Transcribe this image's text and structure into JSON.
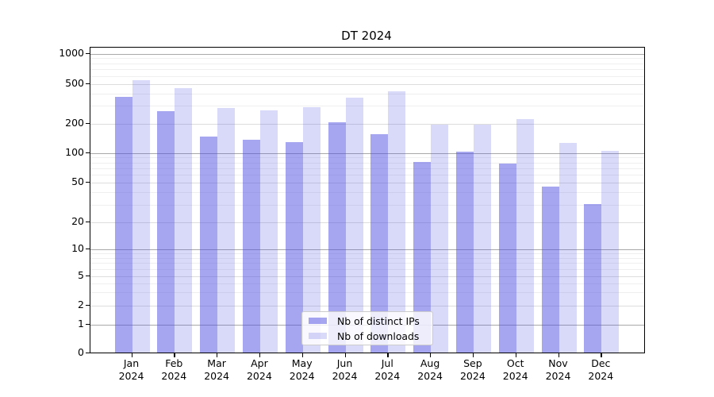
{
  "chart_data": {
    "type": "bar",
    "title": "DT 2024",
    "legend_position": "lower center",
    "grid": true,
    "y_axis": {
      "scale": "log-with-zero",
      "range": [
        0,
        1000
      ],
      "ticks": [
        {
          "value": 1000,
          "label": "1000"
        },
        {
          "value": 500,
          "label": "500"
        },
        {
          "value": 200,
          "label": "200"
        },
        {
          "value": 100,
          "label": "100"
        },
        {
          "value": 50,
          "label": "50"
        },
        {
          "value": 20,
          "label": "20"
        },
        {
          "value": 10,
          "label": "10"
        },
        {
          "value": 5,
          "label": "5"
        },
        {
          "value": 2,
          "label": "2"
        },
        {
          "value": 1,
          "label": "1"
        },
        {
          "value": 0,
          "label": "0"
        }
      ],
      "minor_gridlines": [
        3,
        4,
        6,
        7,
        8,
        9,
        30,
        40,
        60,
        70,
        80,
        90,
        300,
        400,
        600,
        700,
        800,
        900
      ]
    },
    "categories": [
      {
        "month": "Jan",
        "year": "2024"
      },
      {
        "month": "Feb",
        "year": "2024"
      },
      {
        "month": "Mar",
        "year": "2024"
      },
      {
        "month": "Apr",
        "year": "2024"
      },
      {
        "month": "May",
        "year": "2024"
      },
      {
        "month": "Jun",
        "year": "2024"
      },
      {
        "month": "Jul",
        "year": "2024"
      },
      {
        "month": "Aug",
        "year": "2024"
      },
      {
        "month": "Sep",
        "year": "2024"
      },
      {
        "month": "Oct",
        "year": "2024"
      },
      {
        "month": "Nov",
        "year": "2024"
      },
      {
        "month": "Dec",
        "year": "2024"
      }
    ],
    "series": [
      {
        "name": "Nb of distinct IPs",
        "color": "rgba(75,75,225,0.5)",
        "values": [
          365,
          265,
          146,
          134,
          128,
          204,
          155,
          80,
          101,
          77,
          45,
          30
        ]
      },
      {
        "name": "Nb of downloads",
        "color": "rgba(75,75,225,0.21)",
        "values": [
          535,
          450,
          285,
          270,
          290,
          360,
          415,
          193,
          193,
          220,
          126,
          103
        ]
      }
    ]
  }
}
